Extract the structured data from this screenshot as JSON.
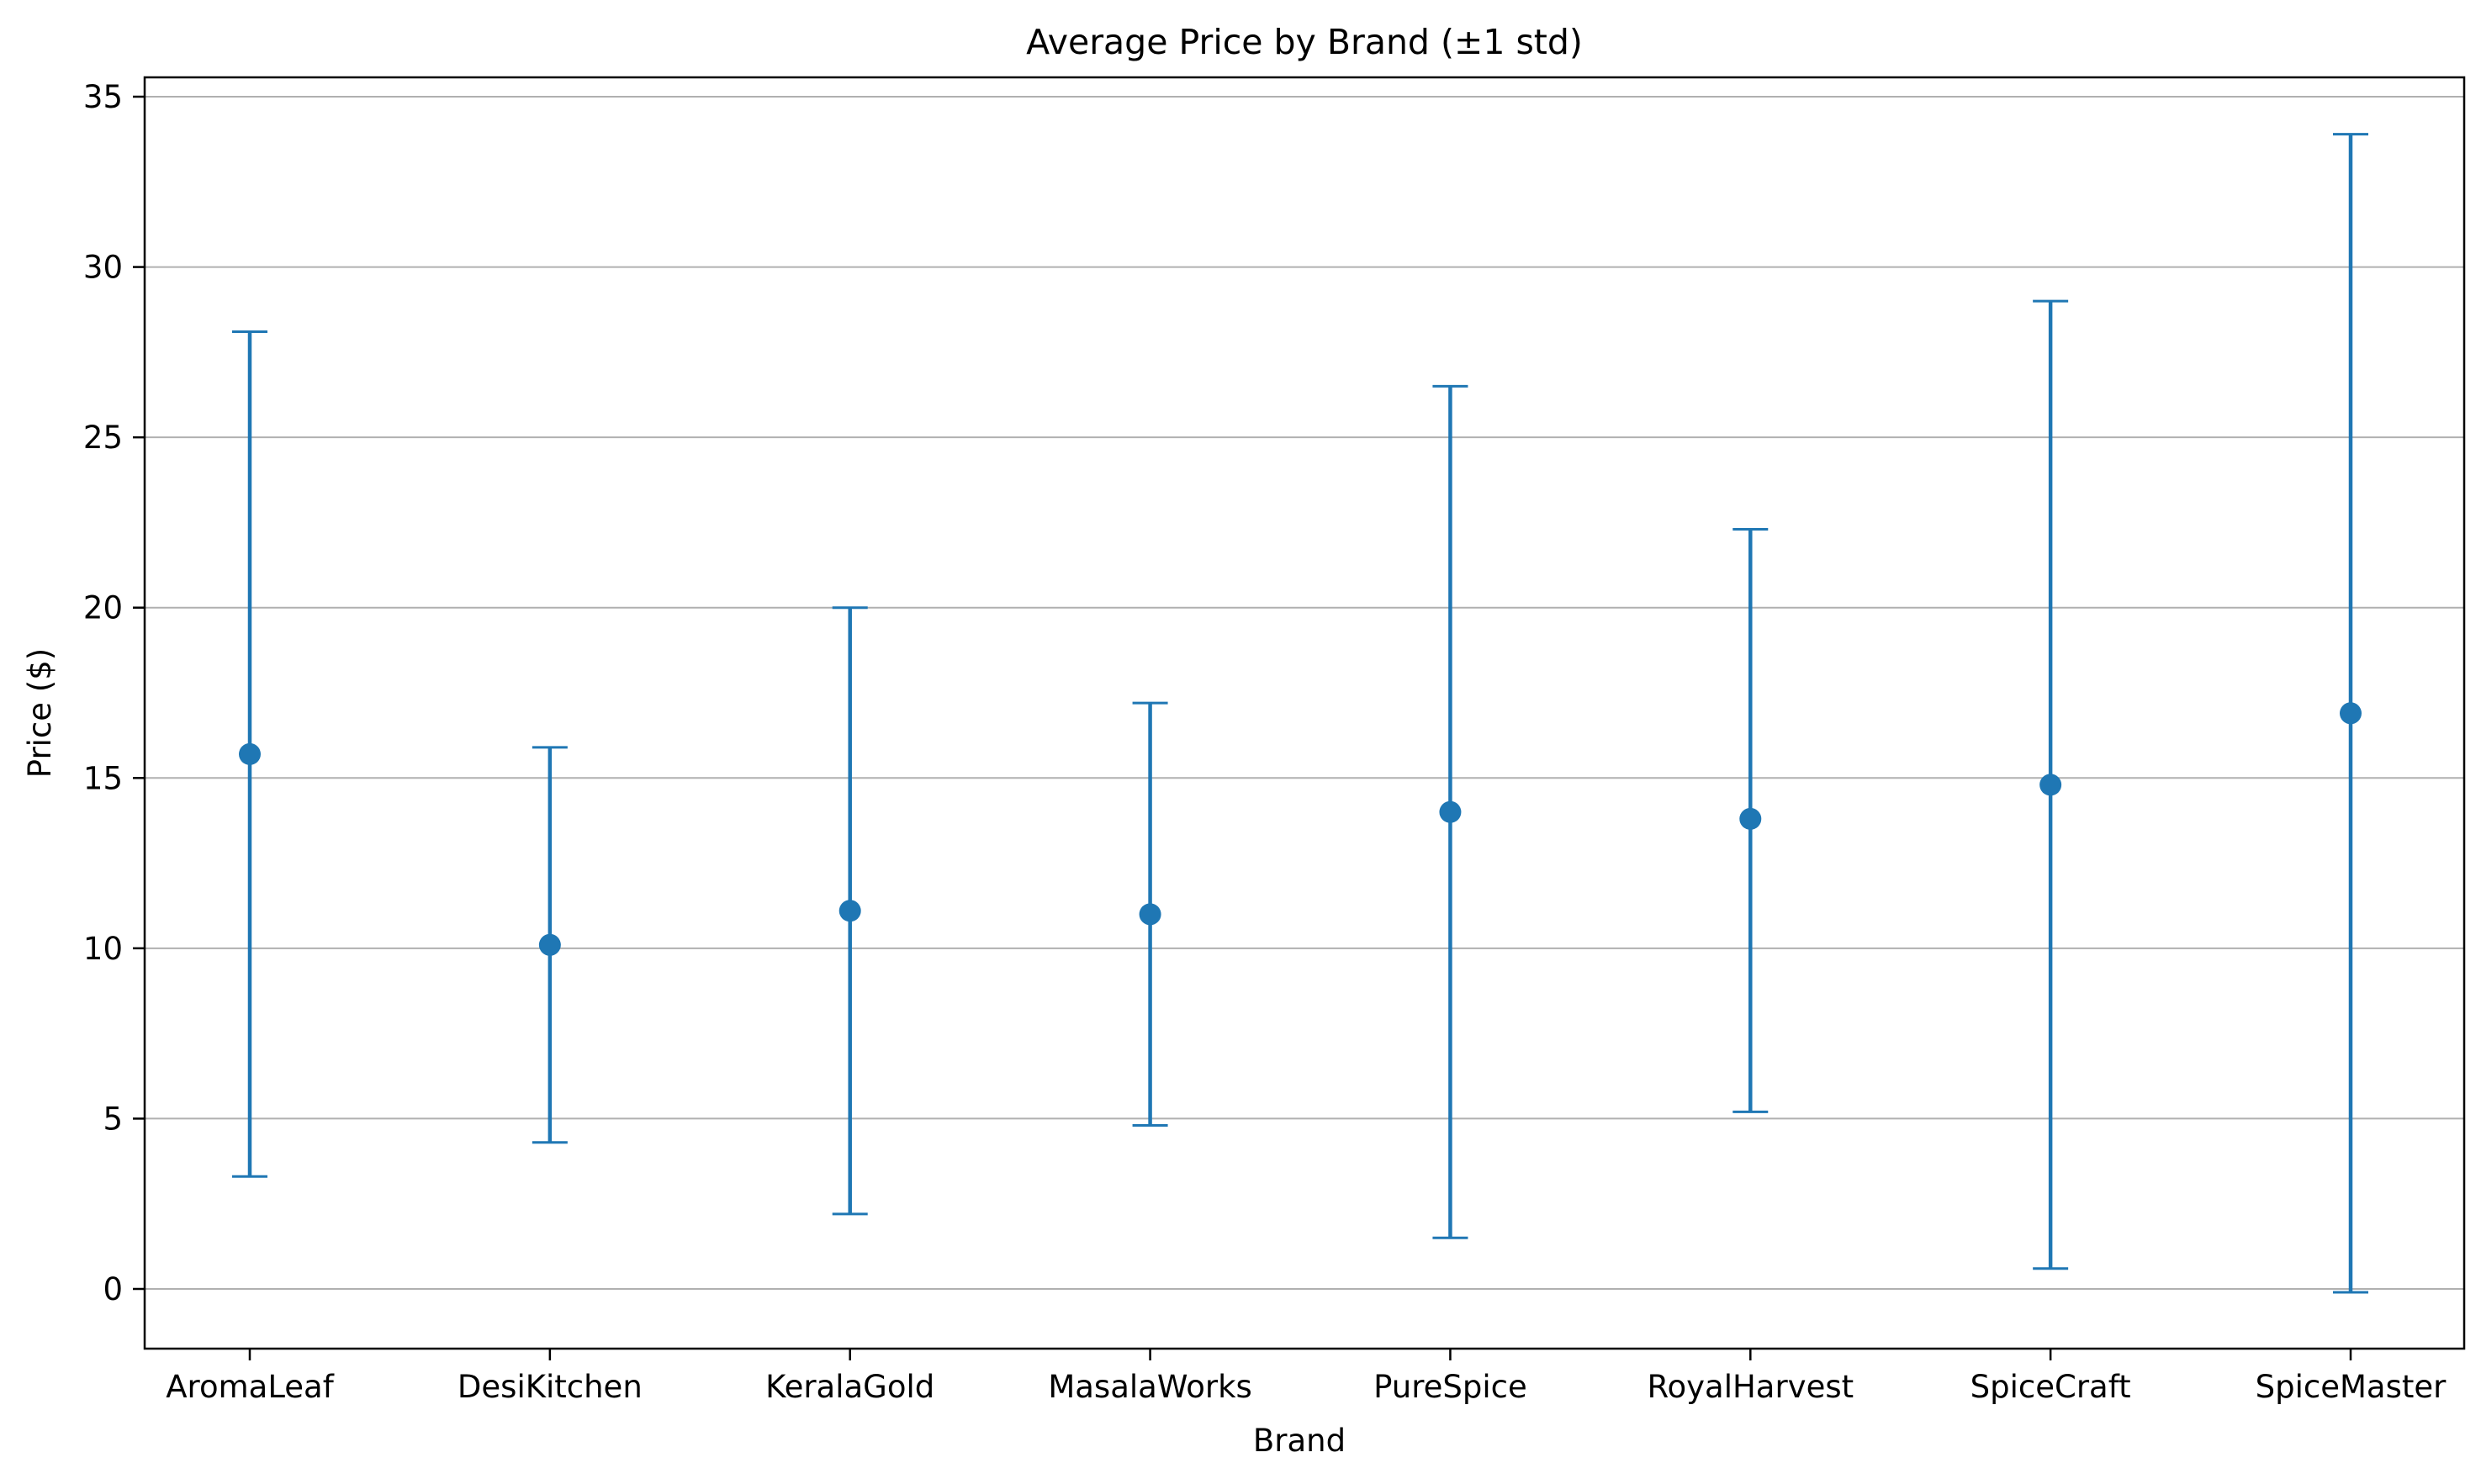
{
  "chart_data": {
    "type": "errorbar",
    "title": "Average Price by Brand (±1 std)",
    "xlabel": "Brand",
    "ylabel": "Price ($)",
    "categories": [
      "AromaLeaf",
      "DesiKitchen",
      "KeralaGold",
      "MasalaWorks",
      "PureSpice",
      "RoyalHarvest",
      "SpiceCraft",
      "SpiceMaster"
    ],
    "series": [
      {
        "mean": [
          15.7,
          10.1,
          11.1,
          11.0,
          14.0,
          13.8,
          14.8,
          16.9
        ],
        "lower": [
          3.3,
          4.3,
          2.2,
          4.8,
          1.5,
          5.2,
          0.6,
          -0.1
        ],
        "upper": [
          28.1,
          15.9,
          20.0,
          17.2,
          26.5,
          22.3,
          29.0,
          33.9
        ]
      }
    ],
    "ylim": [
      -1.8,
      35.6
    ],
    "yticks": [
      0,
      5,
      10,
      15,
      20,
      25,
      30,
      35
    ],
    "grid": "y",
    "colors": {
      "series": "#1f77b4",
      "grid": "#b0b0b0",
      "axis": "#000000"
    }
  }
}
